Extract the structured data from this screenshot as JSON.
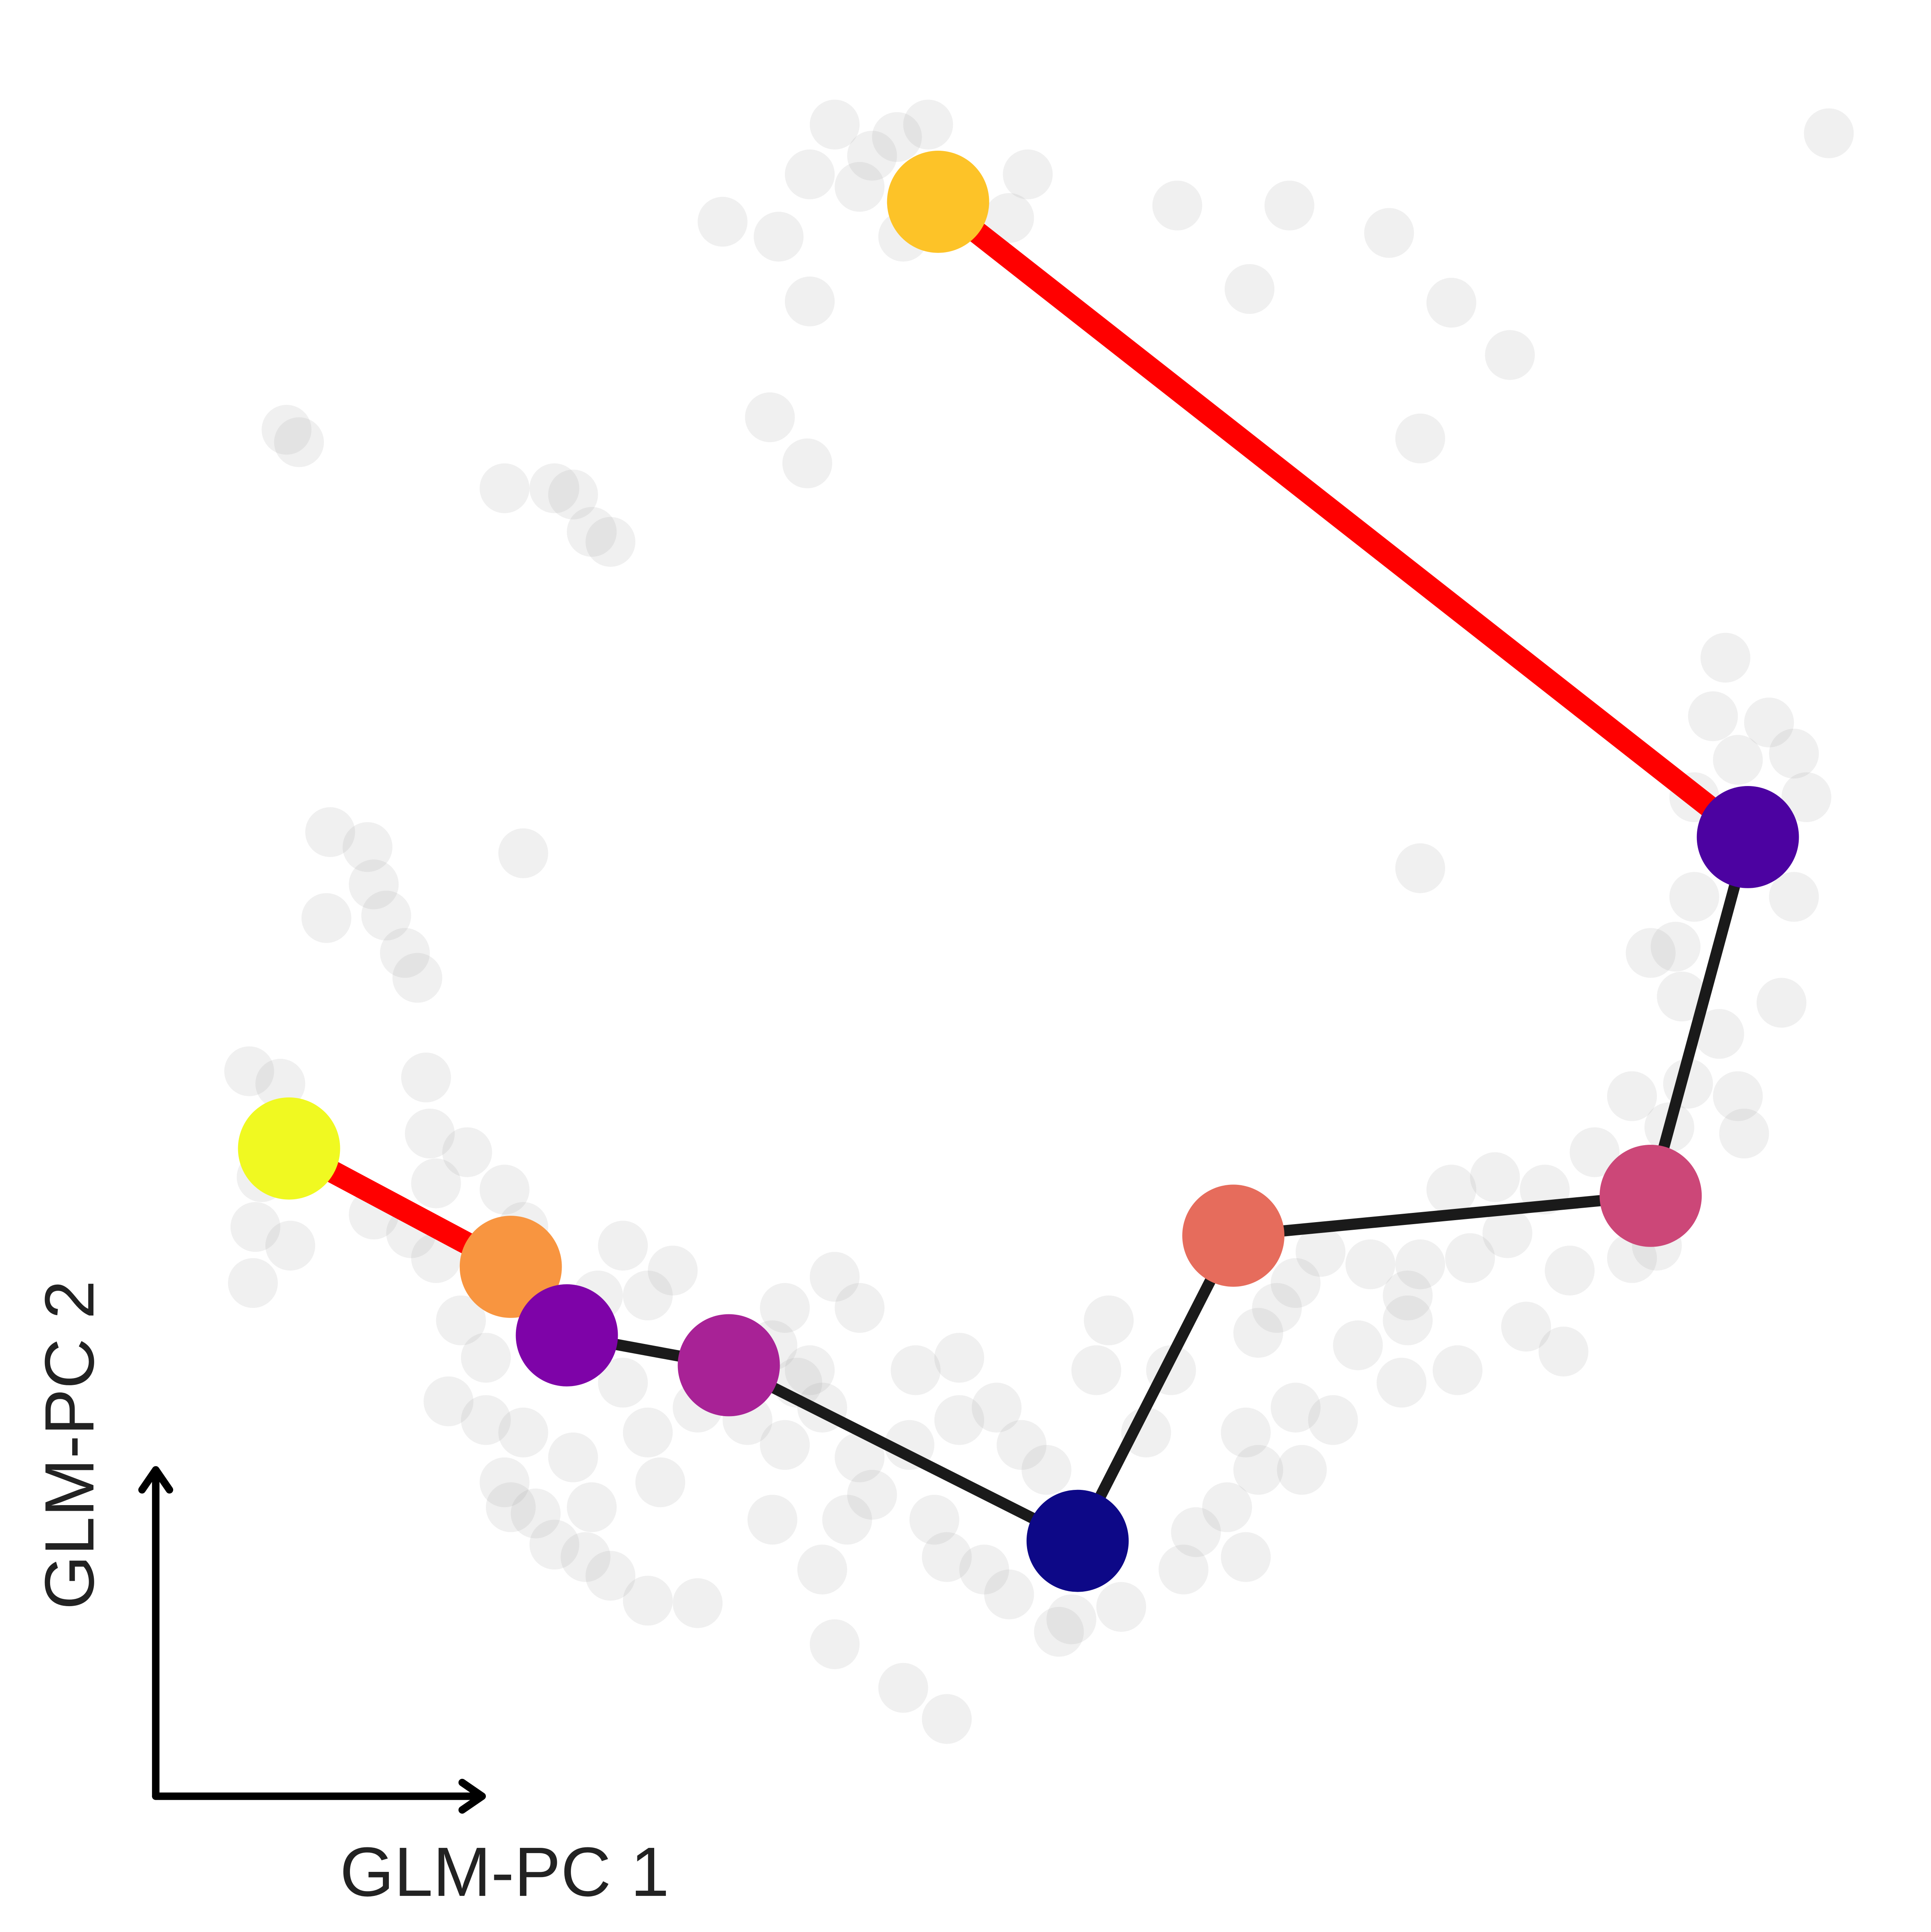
{
  "chart_data": {
    "type": "scatter",
    "xlabel": "GLM-PC 1",
    "ylabel": "GLM-PC 2",
    "xlim": [
      0,
      155
    ],
    "ylim": [
      0,
      155
    ],
    "cells": {
      "color": "#999999",
      "alpha": 0.15,
      "x": [
        67,
        72,
        74.5,
        65,
        69,
        62.5,
        58,
        65,
        72.5,
        82.5,
        81,
        70,
        94.5,
        103.5,
        111.5,
        100.3,
        116.5,
        121.2,
        114,
        146.8,
        61.8,
        64.8,
        23,
        24,
        40.5,
        44.5,
        46,
        47.5,
        49,
        114,
        42,
        26.5,
        29.5,
        30,
        31,
        26.2,
        32.5,
        33.5,
        34.2,
        138.5,
        137.5,
        142,
        144,
        139.5,
        145,
        136,
        144,
        136,
        134.5,
        132.5,
        135,
        143,
        138,
        135.5,
        139.5,
        131,
        140,
        134,
        134,
        131,
        133,
        128,
        124,
        120,
        116.5,
        121,
        118,
        126,
        114,
        110,
        106,
        104,
        113,
        125.5,
        122.5,
        117,
        113,
        109,
        112.5,
        102.5,
        101,
        107,
        104,
        100,
        101,
        98.5,
        104.5,
        96,
        94,
        92,
        89,
        88,
        100,
        95,
        90,
        86,
        85,
        81,
        79,
        76,
        75,
        84,
        82,
        80,
        77,
        73.5,
        77,
        70,
        68,
        66,
        67,
        72.5,
        76,
        73,
        69,
        66,
        64,
        67,
        69,
        62,
        63,
        60,
        56,
        52,
        49,
        47,
        47.5,
        44.5,
        43,
        40.5,
        41,
        53,
        46,
        42,
        39,
        36,
        52,
        56,
        50,
        52,
        54,
        50,
        48,
        39,
        37,
        35,
        33,
        30,
        34.5,
        37.5,
        35,
        40.5,
        42,
        62,
        65,
        63,
        20,
        22.5,
        20.5,
        23.3,
        20.3,
        21
      ],
      "y": [
        145,
        144,
        145,
        141,
        140,
        136,
        137.2,
        130.8,
        136,
        141,
        137.5,
        142.5,
        138.5,
        138.5,
        136.3,
        131.8,
        130.7,
        126.5,
        119.8,
        144.3,
        121.5,
        117.8,
        120.5,
        119.5,
        115.8,
        115.8,
        115.3,
        112.3,
        111.5,
        85.3,
        86.5,
        88.2,
        87,
        84,
        81.5,
        81.3,
        78.5,
        76.5,
        68.5,
        102.2,
        97.5,
        97,
        94.5,
        94,
        91,
        91,
        83,
        83,
        79,
        78.5,
        75,
        74.5,
        72,
        68,
        67,
        67,
        64,
        64.5,
        60,
        54,
        55,
        62.5,
        59.5,
        60.5,
        59.5,
        56,
        54,
        53,
        53.5,
        53.5,
        54.5,
        52,
        51,
        46.5,
        48.5,
        45,
        49,
        47,
        44,
        50,
        48,
        41,
        42,
        40,
        37,
        34,
        37,
        32,
        45,
        40,
        49,
        45,
        30,
        29,
        26,
        25,
        24,
        27,
        29,
        30,
        33,
        37,
        39,
        42,
        46,
        45,
        41,
        35,
        33,
        29,
        23,
        19.5,
        17,
        39,
        38,
        42,
        44,
        52.5,
        50,
        33,
        39,
        41,
        26.3,
        26.5,
        28.5,
        30,
        34,
        31,
        33.5,
        36,
        34,
        36,
        38,
        40,
        41,
        42.5,
        40,
        42,
        44,
        51,
        53,
        55,
        51,
        46,
        49,
        54,
        56,
        57.5,
        64,
        62.5,
        60,
        59.5,
        56.5,
        47,
        45,
        50,
        69,
        68,
        56.5,
        55,
        52,
        60.5
      ]
    },
    "nodes": {
      "colors": [
        "#f0f921",
        "#f89540",
        "#7e03a8",
        "#a82296",
        "#0d0887",
        "#e66c5c",
        "#cc4778",
        "#4c02a1",
        "#fdc328"
      ],
      "x": [
        23.2,
        41.0,
        45.5,
        58.5,
        86.5,
        99.0,
        132.5,
        140.3,
        75.3
      ],
      "y": [
        62.8,
        53.3,
        47.8,
        45.4,
        31.3,
        55.8,
        59.0,
        87.8,
        138.8
      ]
    },
    "edges": [
      {
        "from": 0,
        "to": 1,
        "color": "#ff0000",
        "width": 4
      },
      {
        "from": 8,
        "to": 7,
        "color": "#ff0000",
        "width": 4
      },
      {
        "from": 2,
        "to": 3,
        "color": "#1a1a1a",
        "width": 2
      },
      {
        "from": 3,
        "to": 4,
        "color": "#1a1a1a",
        "width": 2
      },
      {
        "from": 4,
        "to": 5,
        "color": "#1a1a1a",
        "width": 2
      },
      {
        "from": 5,
        "to": 6,
        "color": "#1a1a1a",
        "width": 2
      },
      {
        "from": 6,
        "to": 7,
        "color": "#1a1a1a",
        "width": 2
      }
    ]
  }
}
